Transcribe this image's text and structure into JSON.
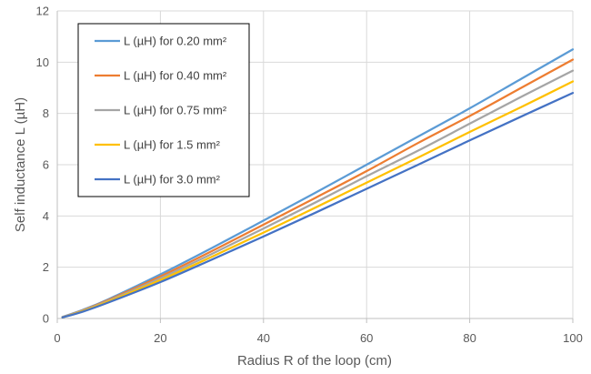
{
  "chart_data": {
    "type": "line",
    "title": "",
    "xlabel": "Radius R of the loop (cm)",
    "ylabel": "Self inductance L (µH)",
    "xlim": [
      0,
      100
    ],
    "ylim": [
      0,
      12
    ],
    "xticks": [
      0,
      20,
      40,
      60,
      80,
      100
    ],
    "yticks": [
      0,
      2,
      4,
      6,
      8,
      10,
      12
    ],
    "grid": true,
    "legend_position": "top-left",
    "x": [
      1,
      5,
      10,
      20,
      30,
      40,
      50,
      60,
      70,
      80,
      90,
      100
    ],
    "series": [
      {
        "name": "L (µH) for 0.20 mm²",
        "color": "#5B9BD5",
        "values": [
          0.06,
          0.34,
          0.76,
          1.72,
          2.75,
          3.82,
          4.9,
          6.0,
          7.1,
          8.2,
          9.35,
          10.5
        ]
      },
      {
        "name": "L (µH) for 0.40 mm²",
        "color": "#ED7D31",
        "values": [
          0.05,
          0.32,
          0.73,
          1.64,
          2.63,
          3.66,
          4.7,
          5.75,
          6.85,
          7.9,
          9.0,
          10.1
        ]
      },
      {
        "name": "L (µH) for 0.75 mm²",
        "color": "#A5A5A5",
        "values": [
          0.05,
          0.31,
          0.7,
          1.57,
          2.52,
          3.51,
          4.52,
          5.55,
          6.55,
          7.6,
          8.65,
          9.67
        ]
      },
      {
        "name": "L (µH) for 1.5 mm²",
        "color": "#FFC000",
        "values": [
          0.04,
          0.29,
          0.67,
          1.5,
          2.41,
          3.35,
          4.32,
          5.3,
          6.28,
          7.28,
          8.25,
          9.25
        ]
      },
      {
        "name": "L (µH) for 3.0 mm²",
        "color": "#4472C4",
        "values": [
          0.04,
          0.27,
          0.63,
          1.42,
          2.3,
          3.2,
          4.12,
          5.06,
          6.0,
          6.95,
          7.88,
          8.8
        ]
      }
    ]
  }
}
